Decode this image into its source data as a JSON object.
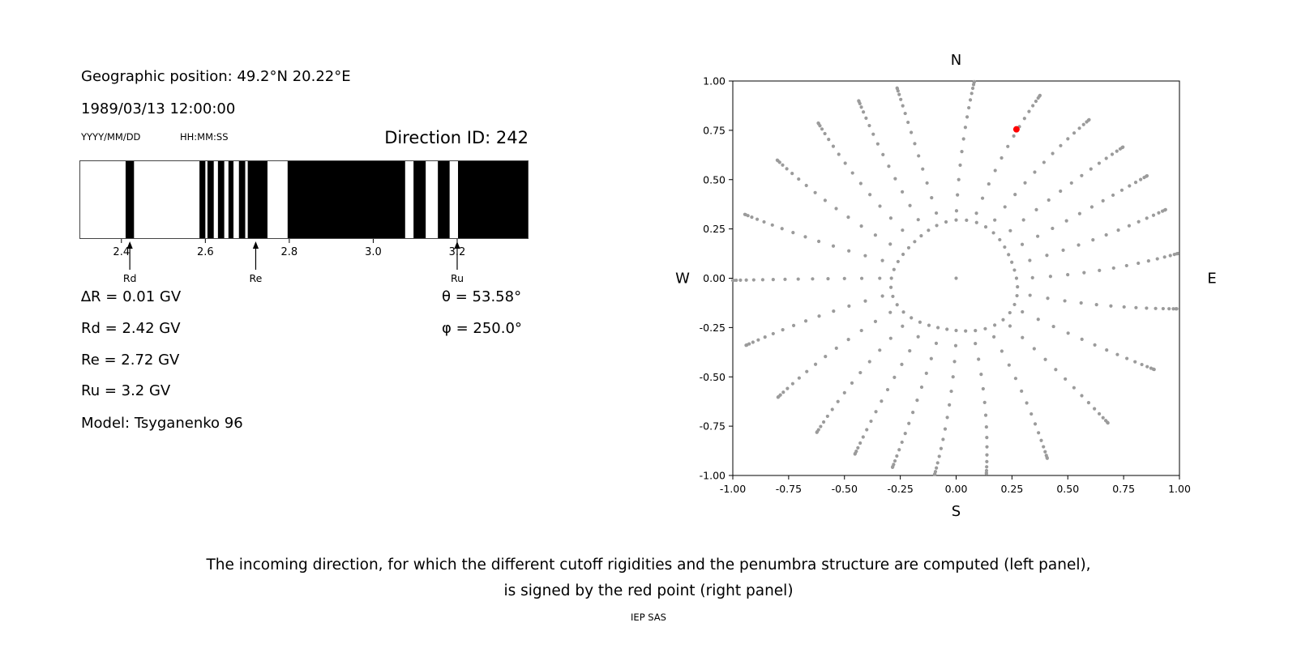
{
  "left_panel": {
    "geo_position": "Geographic position: 49.2°N 20.22°E",
    "datetime": "1989/03/13 12:00:00",
    "date_format_hint": "YYYY/MM/DD",
    "time_format_hint": "HH:MM:SS",
    "direction_id": "Direction ID: 242",
    "lines": {
      "delta_r": "∆R = 0.01 GV",
      "rd": "Rd = 2.42 GV",
      "re": "Re = 2.72 GV",
      "ru": "Ru = 3.2 GV",
      "model": "Model: Tsyganenko 96",
      "theta": "θ = 53.58°",
      "phi": "φ = 250.0°"
    }
  },
  "chart_data": [
    {
      "type": "bar",
      "name": "penumbra-structure",
      "description": "Penumbra structure barcode: black intervals = allowed rigidities (GV), white = forbidden",
      "xlim": [
        2.3,
        3.37
      ],
      "xticks": [
        2.4,
        2.6,
        2.8,
        3.0,
        3.2
      ],
      "bar_color": "#000000",
      "black_intervals_gv": [
        [
          2.41,
          2.43
        ],
        [
          2.586,
          2.6
        ],
        [
          2.605,
          2.62
        ],
        [
          2.63,
          2.645
        ],
        [
          2.655,
          2.667
        ],
        [
          2.68,
          2.695
        ],
        [
          2.701,
          2.748
        ],
        [
          2.796,
          3.076
        ],
        [
          3.096,
          3.125
        ],
        [
          3.154,
          3.182
        ],
        [
          3.202,
          3.37
        ]
      ],
      "markers": [
        {
          "label": "Rd",
          "x": 2.42
        },
        {
          "label": "Re",
          "x": 2.72
        },
        {
          "label": "Ru",
          "x": 3.2
        }
      ]
    },
    {
      "type": "scatter",
      "name": "incoming-directions",
      "xlim": [
        -1,
        1
      ],
      "ylim": [
        -1,
        1
      ],
      "xticks": [
        -1.0,
        -0.75,
        -0.5,
        -0.25,
        0.0,
        0.25,
        0.5,
        0.75,
        1.0
      ],
      "yticks": [
        -1.0,
        -0.75,
        -0.5,
        -0.25,
        0.0,
        0.25,
        0.5,
        0.75,
        1.0
      ],
      "tick_decimals": 2,
      "compass": {
        "top": "N",
        "bottom": "S",
        "left": "W",
        "right": "E"
      },
      "grid_points": {
        "color": "#9b9b9b",
        "azimuth_spokes": 24,
        "zenith_deg": [
          20,
          25,
          30,
          35,
          40,
          45,
          50,
          55,
          60,
          65,
          70,
          75,
          80,
          85,
          89
        ],
        "inner_ring_radius": 0.28,
        "inner_ring_count": 40,
        "center_point": true
      },
      "highlight_point": {
        "x": 0.27,
        "y": 0.755,
        "color": "#ff0000",
        "label": "selected incoming direction (red point)"
      }
    }
  ],
  "caption": {
    "line1": "The incoming direction, for which the different cutoff rigidities and the penumbra structure are computed (left panel),",
    "line2": "is signed by the red point (right panel)",
    "credit": "IEP SAS"
  }
}
